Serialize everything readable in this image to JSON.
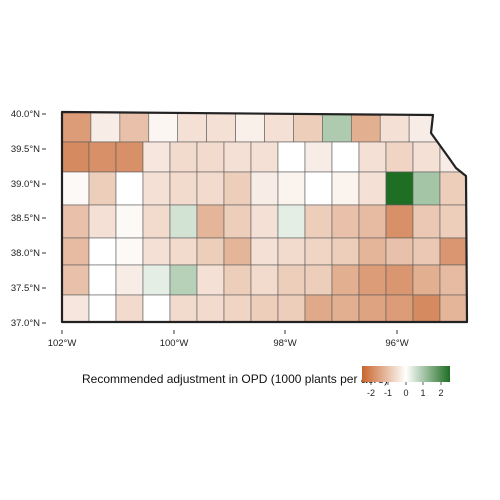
{
  "map": {
    "title": "",
    "lat_ticks": [
      "40.0°N",
      "39.5°N",
      "39.0°N",
      "38.5°N",
      "38.0°N",
      "37.5°N",
      "37.0°N"
    ],
    "lon_ticks": [
      "102°W",
      "100°W",
      "98°W",
      "96°W"
    ],
    "legend": {
      "title": "Recommended adjustment in OPD (1000 plants per acre)",
      "ticks": [
        "-2",
        "-1",
        "0",
        "1",
        "2"
      ],
      "range": [
        -2.5,
        2.5
      ],
      "colors": {
        "negative": "#c8652c",
        "neutral": "#ffffff",
        "positive": "#1e6e23"
      }
    },
    "border_color": "#222222",
    "county_border_color": "#5a5a5a"
  },
  "chart_data": {
    "type": "heatmap",
    "title": "",
    "xlabel": "",
    "ylabel": "",
    "lon_range": [
      -102.05,
      -94.6
    ],
    "lat_range": [
      37.0,
      40.0
    ],
    "legend_title": "Recommended adjustment in OPD (1000 plants per acre)",
    "colorscale_range": [
      -2.5,
      2.5
    ],
    "rows": [
      [
        -1.6,
        -0.3,
        -1.0,
        -0.15,
        -0.5,
        -0.5,
        -0.25,
        -0.5,
        -0.8,
        0.9,
        -1.3,
        -0.5,
        -0.3,
        0
      ],
      [
        -1.9,
        -1.8,
        -1.8,
        -0.4,
        -0.6,
        -0.6,
        -0.5,
        -0.5,
        0,
        -0.3,
        0,
        -0.5,
        -0.7,
        -0.5,
        -0.3
      ],
      [
        -0.1,
        -0.8,
        0,
        -0.5,
        -0.6,
        -0.6,
        -0.8,
        -0.3,
        -0.2,
        0,
        -0.2,
        -0.5,
        2.5,
        1.0,
        -0.8
      ],
      [
        -1.0,
        -0.5,
        -0.1,
        -0.6,
        0.5,
        -1.2,
        -0.8,
        -0.5,
        0.3,
        -0.8,
        -1.0,
        -1.1,
        -1.8,
        -0.9,
        -0.8
      ],
      [
        -1.1,
        0,
        -0.1,
        -0.5,
        -0.6,
        -0.8,
        -1.2,
        -0.5,
        -0.6,
        -0.7,
        -0.8,
        -1.2,
        -1.0,
        -0.9,
        -1.7
      ],
      [
        -1.0,
        0,
        -0.3,
        0.3,
        0.8,
        -0.5,
        -0.8,
        -0.6,
        -0.8,
        -0.8,
        -1.3,
        -1.6,
        -1.7,
        -1.3,
        -1.1
      ],
      [
        -0.4,
        0,
        -0.6,
        0,
        -0.6,
        -0.6,
        -0.7,
        -0.8,
        -0.8,
        -1.4,
        -1.3,
        -1.5,
        -1.6,
        -1.9,
        -1.2
      ]
    ]
  }
}
